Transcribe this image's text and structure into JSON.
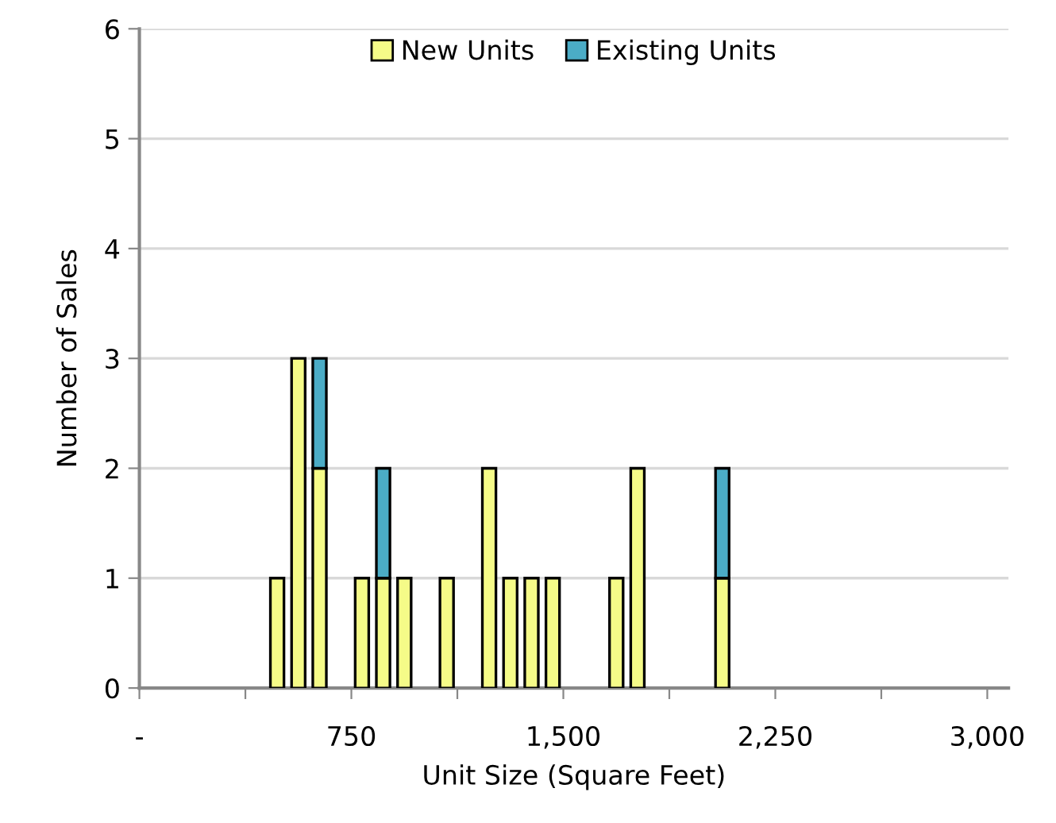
{
  "chart_data": {
    "type": "bar",
    "stacked": true,
    "xlabel": "Unit Size (Square Feet)",
    "ylabel": "Number of Sales",
    "x": [
      487.5,
      562.5,
      637.5,
      787.5,
      862.5,
      937.5,
      1087.5,
      1237.5,
      1312.5,
      1387.5,
      1462.5,
      1687.5,
      1762.5,
      2062.5
    ],
    "series": [
      {
        "name": "New Units",
        "color": "#f5fb88",
        "values": [
          1,
          3,
          2,
          1,
          1,
          1,
          1,
          2,
          1,
          1,
          1,
          1,
          2,
          1
        ]
      },
      {
        "name": "Existing Units",
        "color": "#4bacc6",
        "values": [
          null,
          null,
          1,
          null,
          1,
          null,
          null,
          null,
          null,
          null,
          null,
          null,
          null,
          1
        ]
      }
    ],
    "xlim": [
      0,
      3075
    ],
    "xticks": [
      {
        "value": 0,
        "label": "-"
      },
      {
        "value": 375,
        "label": null
      },
      750,
      {
        "value": 1125,
        "label": null
      },
      {
        "value": 1500,
        "label": "1,500"
      },
      {
        "value": 1875,
        "label": null
      },
      {
        "value": 2250,
        "label": "2,250"
      },
      {
        "value": 2625,
        "label": null
      },
      {
        "value": 3000,
        "label": "3,000"
      }
    ],
    "ylim": [
      0,
      6
    ],
    "yticks": [
      0,
      1,
      2,
      3,
      4,
      5,
      6
    ],
    "grid": "y",
    "legend": "top"
  }
}
